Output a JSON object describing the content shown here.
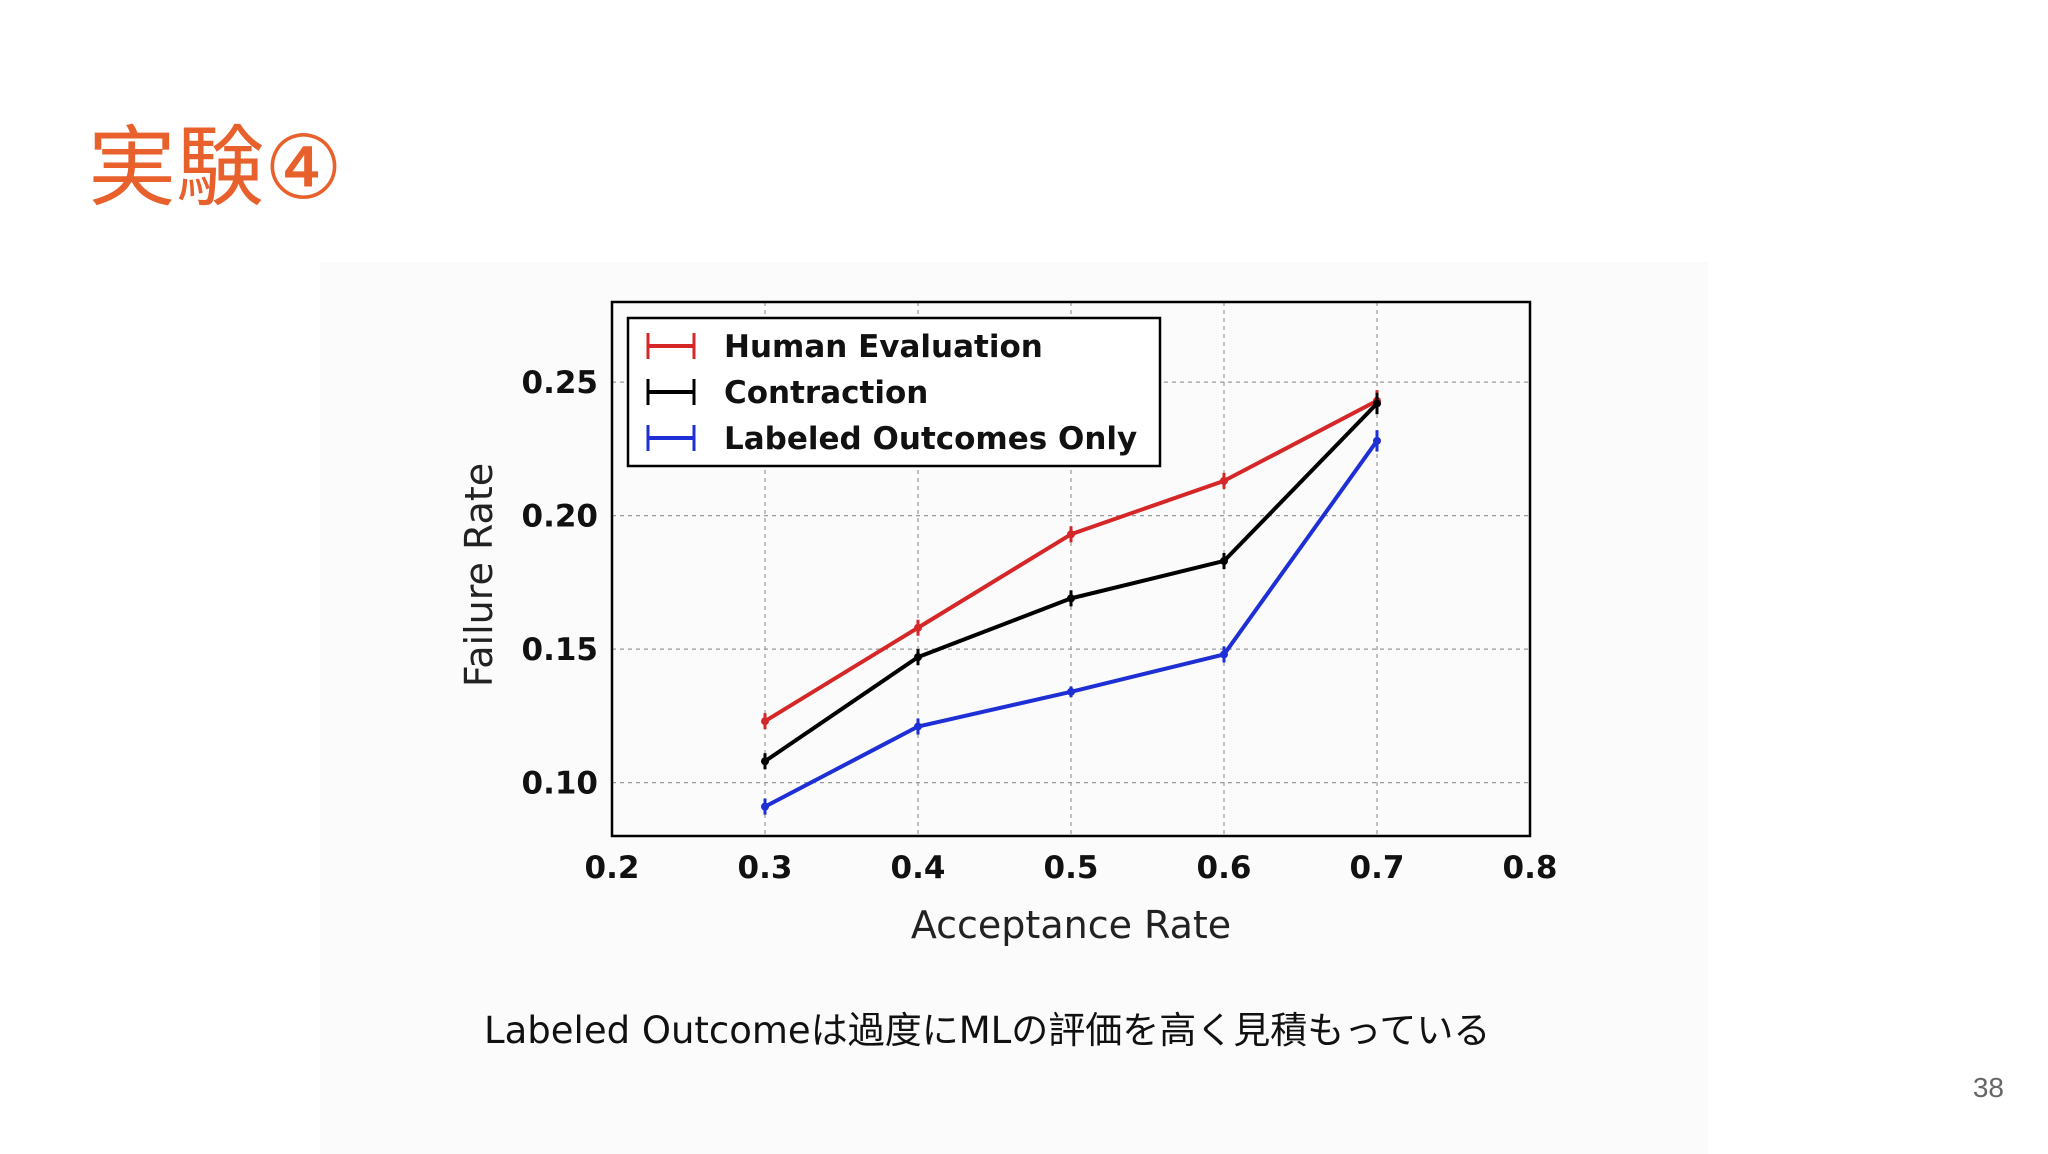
{
  "slide": {
    "title": "実験④",
    "caption": "Labeled Outcomeは過度にMLの評価を高く見積もっている",
    "page_number": "38"
  },
  "colors": {
    "title": "#e8602c",
    "human_evaluation": "#d62728",
    "contraction": "#000000",
    "labeled_outcomes_only": "#1f2fd6",
    "grid": "#9a9a9a"
  },
  "chart_data": {
    "type": "line",
    "title": "",
    "xlabel": "Acceptance Rate",
    "ylabel": "Failure Rate",
    "xlim": [
      0.2,
      0.8
    ],
    "ylim": [
      0.08,
      0.28
    ],
    "xticks": [
      0.2,
      0.3,
      0.4,
      0.5,
      0.6,
      0.7,
      0.8
    ],
    "xtick_labels": [
      "0.2",
      "0.3",
      "0.4",
      "0.5",
      "0.6",
      "0.7",
      "0.8"
    ],
    "yticks": [
      0.1,
      0.15,
      0.2,
      0.25
    ],
    "ytick_labels": [
      "0.10",
      "0.15",
      "0.20",
      "0.25"
    ],
    "grid": true,
    "legend_position": "top-left",
    "x": [
      0.3,
      0.4,
      0.5,
      0.6,
      0.7
    ],
    "series": [
      {
        "name": "Human Evaluation",
        "color": "#d62728",
        "values": [
          0.123,
          0.158,
          0.193,
          0.213,
          0.243
        ],
        "error": [
          0.003,
          0.003,
          0.003,
          0.003,
          0.004
        ]
      },
      {
        "name": "Contraction",
        "color": "#000000",
        "values": [
          0.108,
          0.147,
          0.169,
          0.183,
          0.242
        ],
        "error": [
          0.003,
          0.003,
          0.003,
          0.003,
          0.004
        ]
      },
      {
        "name": "Labeled Outcomes Only",
        "color": "#1f2fd6",
        "values": [
          0.091,
          0.121,
          0.134,
          0.148,
          0.228
        ],
        "error": [
          0.003,
          0.003,
          0.002,
          0.003,
          0.004
        ]
      }
    ]
  }
}
